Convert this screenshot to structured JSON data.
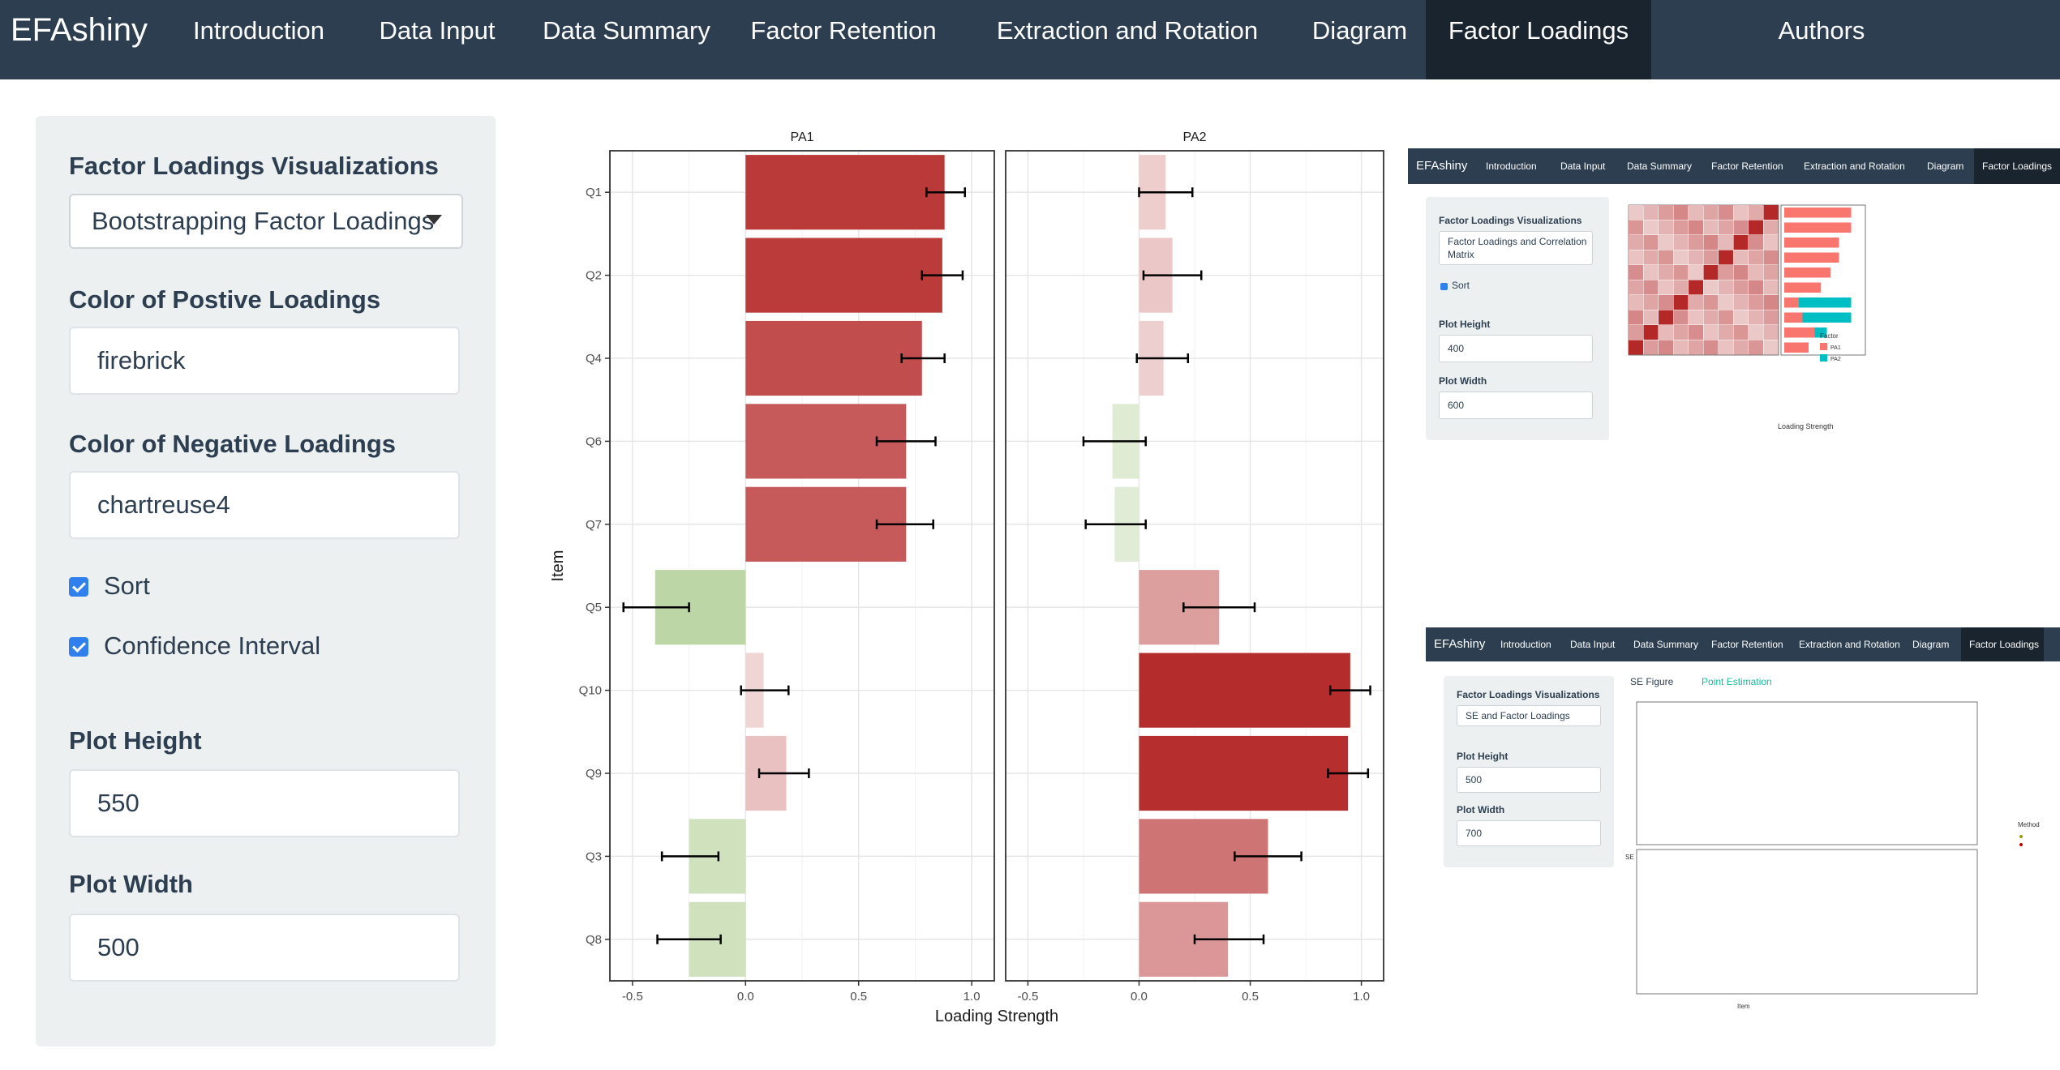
{
  "brand": "EFAshiny",
  "nav": [
    "Introduction",
    "Data Input",
    "Data Summary",
    "Factor Retention",
    "Extraction and Rotation",
    "Diagram",
    "Factor Loadings",
    "Authors"
  ],
  "sidebar": {
    "viz_label": "Factor Loadings Visualizations",
    "viz_value": "Bootstrapping Factor Loadings",
    "pos_label": "Color of Postive Loadings",
    "pos_value": "firebrick",
    "neg_label": "Color of Negative Loadings",
    "neg_value": "chartreuse4",
    "sort_label": "Sort",
    "ci_label": "Confidence Interval",
    "height_label": "Plot Height",
    "height_value": "550",
    "width_label": "Plot Width",
    "width_value": "500"
  },
  "colors": {
    "positive": "#b22222",
    "negative": "#458b00"
  },
  "chart_data": {
    "type": "bar",
    "orientation": "horizontal",
    "facets": [
      "PA1",
      "PA2"
    ],
    "categories": [
      "Q1",
      "Q2",
      "Q4",
      "Q6",
      "Q7",
      "Q5",
      "Q10",
      "Q9",
      "Q3",
      "Q8"
    ],
    "series": [
      {
        "name": "PA1",
        "values": [
          0.88,
          0.87,
          0.78,
          0.71,
          0.71,
          -0.4,
          0.08,
          0.18,
          -0.25,
          -0.25
        ],
        "ci_low": [
          0.8,
          0.78,
          0.69,
          0.58,
          0.58,
          -0.54,
          -0.02,
          0.06,
          -0.37,
          -0.39
        ],
        "ci_high": [
          0.97,
          0.96,
          0.88,
          0.84,
          0.83,
          -0.25,
          0.19,
          0.28,
          -0.12,
          -0.11
        ]
      },
      {
        "name": "PA2",
        "values": [
          0.12,
          0.15,
          0.11,
          -0.12,
          -0.11,
          0.36,
          0.95,
          0.94,
          0.58,
          0.4
        ],
        "ci_low": [
          0.0,
          0.02,
          -0.01,
          -0.25,
          -0.24,
          0.2,
          0.86,
          0.85,
          0.43,
          0.25
        ],
        "ci_high": [
          0.24,
          0.28,
          0.22,
          0.03,
          0.03,
          0.52,
          1.04,
          1.03,
          0.73,
          0.56
        ]
      }
    ],
    "xlabel": "Loading Strength",
    "ylabel": "Item",
    "xlim": [
      -0.6,
      1.1
    ],
    "xticks": [
      "-0.5",
      "0.0",
      "0.5",
      "1.0"
    ]
  },
  "shot1": {
    "brand": "EFAshiny",
    "nav": [
      "Introduction",
      "Data Input",
      "Data Summary",
      "Factor Retention",
      "Extraction and Rotation",
      "Diagram",
      "Factor Loadings"
    ],
    "viz_label": "Factor Loadings Visualizations",
    "viz_value": "Factor Loadings and Correlation Matrix",
    "sort_label": "Sort",
    "height_label": "Plot Height",
    "height_value": "400",
    "width_label": "Plot Width",
    "width_value": "600",
    "legend_title": "Factor",
    "legend_items": [
      "PA1",
      "PA2"
    ],
    "xlabel": "Loading Strength"
  },
  "shot2": {
    "brand": "EFAshiny",
    "nav": [
      "Introduction",
      "Data Input",
      "Data Summary",
      "Factor Retention",
      "Extraction and Rotation",
      "Diagram",
      "Factor Loadings"
    ],
    "viz_label": "Factor Loadings Visualizations",
    "viz_value": "SE and Factor Loadings",
    "height_label": "Plot Height",
    "height_value": "500",
    "width_label": "Plot Width",
    "width_value": "700",
    "tabs": [
      "SE Figure",
      "Point Estimation"
    ],
    "legend_title": "Method",
    "xlabel": "Item",
    "ylabel": "SE"
  }
}
